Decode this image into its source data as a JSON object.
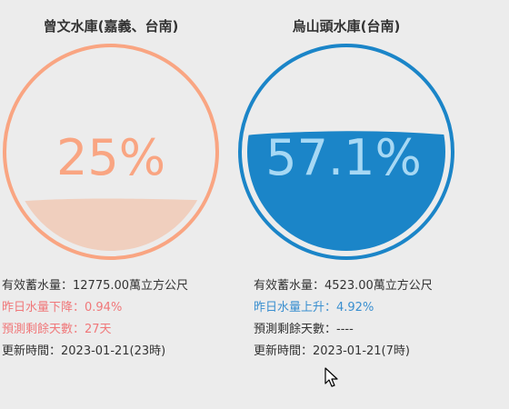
{
  "reservoirs": [
    {
      "title": "曾文水庫(嘉義、台南)",
      "percent_text": "25%",
      "percent_value": 25,
      "ring_color": "#f9a582",
      "text_color": "#f9a582",
      "water_color": "#f0cfbe",
      "capacity": "有效蓄水量：12775.00萬立方公尺",
      "change": "昨日水量下降：0.94%",
      "days": "預測剩餘天數：27天",
      "updated": "更新時間：2023-01-21(23時)"
    },
    {
      "title": "烏山頭水庫(台南)",
      "percent_text": "57.1%",
      "percent_value": 57.1,
      "ring_color": "#1b85c8",
      "text_color_top": "#1a6aa8",
      "text_color_bottom": "#a6d8f4",
      "water_color": "#1b85c8",
      "capacity": "有效蓄水量：4523.00萬立方公尺",
      "change": "昨日水量上升：4.92%",
      "days": "預測剩餘天數：----",
      "updated": "更新時間：2023-01-21(7時)"
    }
  ]
}
